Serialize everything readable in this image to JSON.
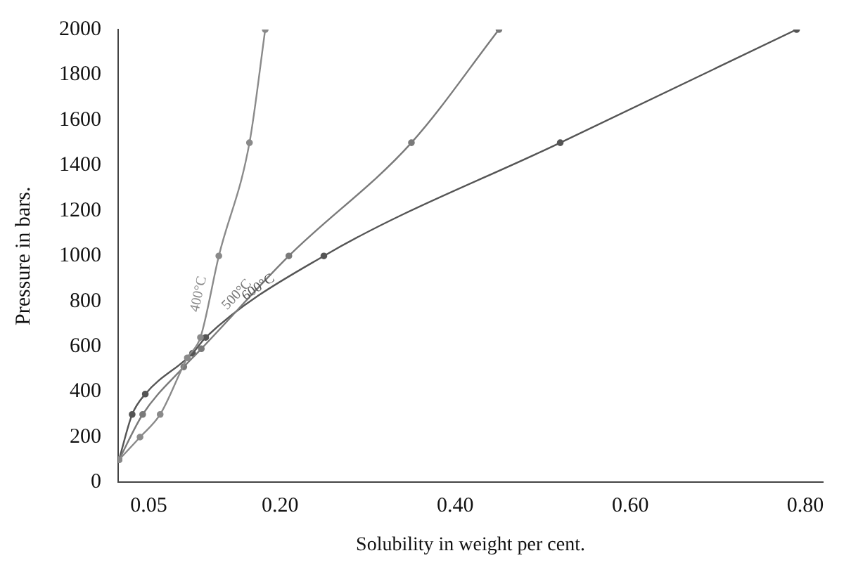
{
  "chart_data": {
    "type": "line",
    "xlabel": "Solubility in weight per cent.",
    "ylabel": "Pressure in bars.",
    "xlim": [
      0.015,
      0.82
    ],
    "xticks": [
      {
        "value": 0.05,
        "label": "0.05"
      },
      {
        "value": 0.2,
        "label": "0.20"
      },
      {
        "value": 0.4,
        "label": "0.40"
      },
      {
        "value": 0.6,
        "label": "0.60"
      },
      {
        "value": 0.8,
        "label": "0.80"
      }
    ],
    "ylim": [
      0,
      2000
    ],
    "yticks": [
      0,
      200,
      400,
      600,
      800,
      1000,
      1200,
      1400,
      1600,
      1800,
      2000
    ],
    "series": [
      {
        "name": "400°C",
        "color": "#8a8a8a",
        "x": [
          0.016,
          0.04,
          0.063,
          0.094,
          0.109,
          0.13,
          0.165,
          0.183
        ],
        "values": [
          100,
          200,
          300,
          550,
          640,
          1000,
          1500,
          2000
        ]
      },
      {
        "name": "500°C",
        "color": "#7a7a7a",
        "x": [
          0.016,
          0.043,
          0.09,
          0.11,
          0.21,
          0.35,
          0.45
        ],
        "values": [
          100,
          300,
          510,
          590,
          1000,
          1500,
          2000
        ]
      },
      {
        "name": "600°C",
        "color": "#555555",
        "x": [
          0.016,
          0.031,
          0.046,
          0.1,
          0.115,
          0.25,
          0.52,
          0.79
        ],
        "values": [
          100,
          300,
          390,
          570,
          640,
          1000,
          1500,
          2000
        ]
      }
    ],
    "grid": false,
    "legend": false,
    "marker": "circle",
    "line_style": "solid"
  }
}
